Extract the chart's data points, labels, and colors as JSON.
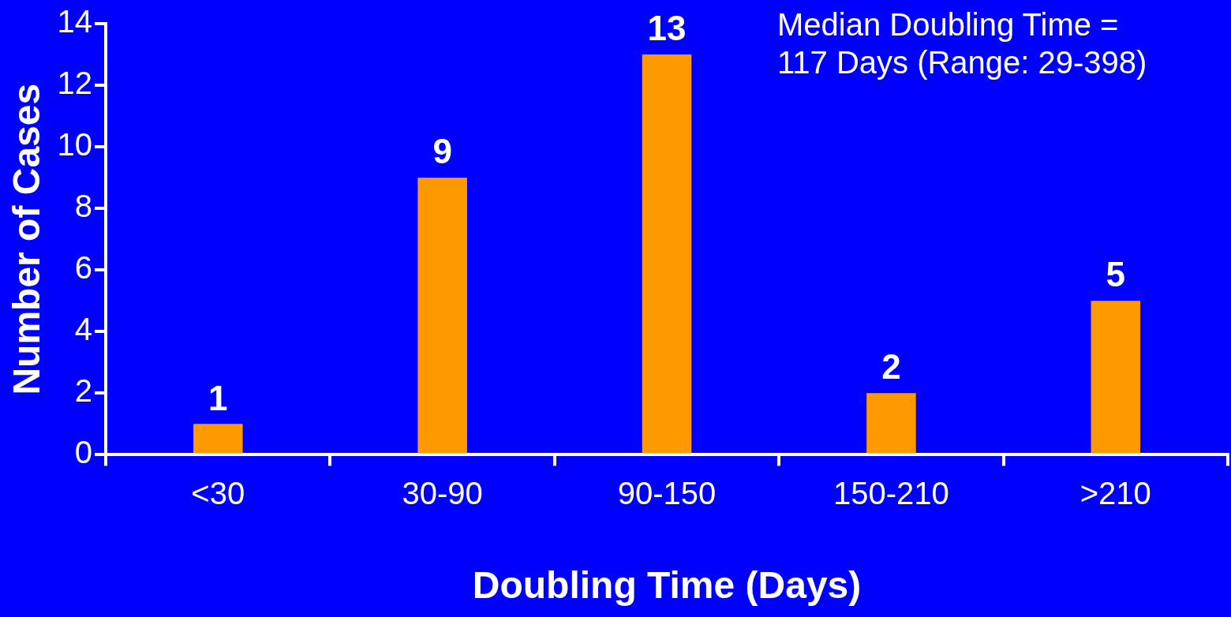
{
  "chart_data": {
    "type": "bar",
    "xlabel": "Doubling Time (Days)",
    "ylabel": "Number of Cases",
    "categories": [
      "<30",
      "30-90",
      "90-150",
      "150-210",
      ">210"
    ],
    "values": [
      1,
      9,
      13,
      2,
      5
    ],
    "color": "#ff9900",
    "ylim": [
      0,
      14
    ],
    "yticks": [
      0,
      2,
      4,
      6,
      8,
      10,
      12,
      14
    ],
    "grid": false,
    "data_labels": true,
    "legend": false,
    "annotations": [
      "Median Doubling Time =\n117 Days (Range: 29-398)"
    ]
  }
}
